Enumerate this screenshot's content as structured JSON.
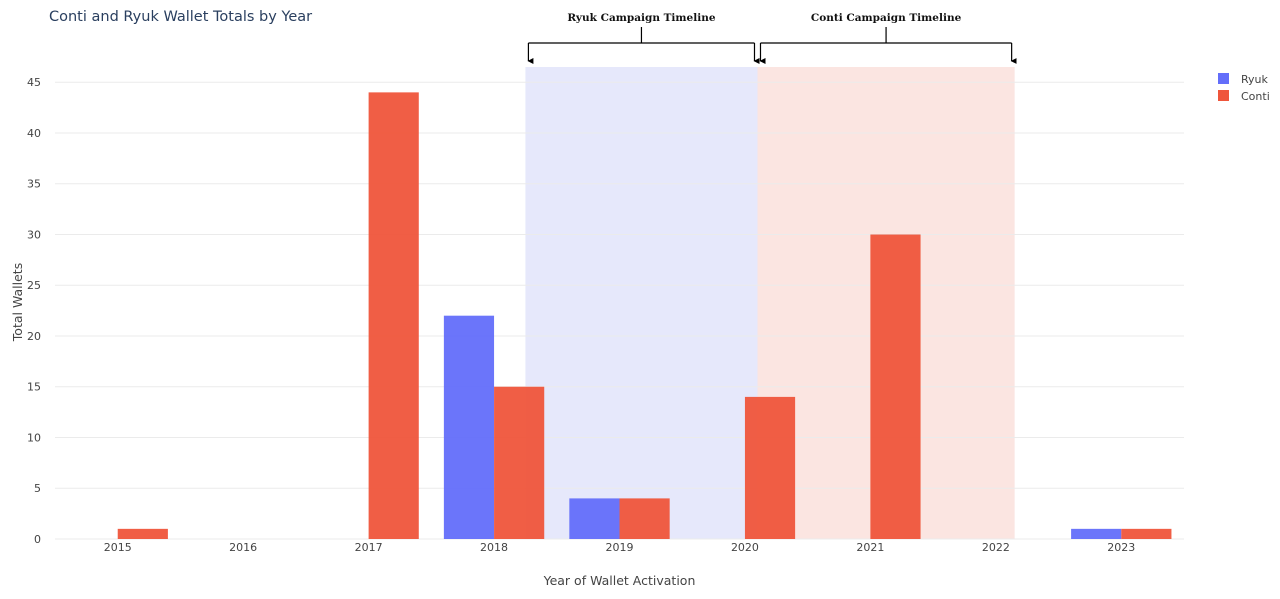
{
  "colors": {
    "ryuk": "#636efa",
    "conti": "#ef553b",
    "ryuk_region": "#e6e8fb",
    "conti_region": "#fbe5e1"
  },
  "chart_data": {
    "type": "bar",
    "title": "Conti and Ryuk Wallet Totals by Year",
    "xlabel": "Year of Wallet Activation",
    "ylabel": "Total Wallets",
    "categories": [
      "2015",
      "2016",
      "2017",
      "2018",
      "2019",
      "2020",
      "2021",
      "2022",
      "2023"
    ],
    "series": [
      {
        "name": "Ryuk",
        "values": [
          0,
          0,
          0,
          22,
          4,
          0,
          0,
          0,
          1
        ]
      },
      {
        "name": "Conti",
        "values": [
          1,
          0,
          44,
          15,
          4,
          14,
          30,
          0,
          1
        ]
      }
    ],
    "ylim": [
      0,
      46.5
    ],
    "yticks": [
      "0",
      "5",
      "10",
      "15",
      "20",
      "25",
      "30",
      "35",
      "40",
      "45"
    ],
    "legend": "top-right",
    "grid": true,
    "regions": [
      {
        "label": "Ryuk Campaign Timeline",
        "start": 2018.25,
        "end": 2020.1
      },
      {
        "label": "Conti Campaign Timeline",
        "start": 2020.1,
        "end": 2022.15
      }
    ]
  }
}
